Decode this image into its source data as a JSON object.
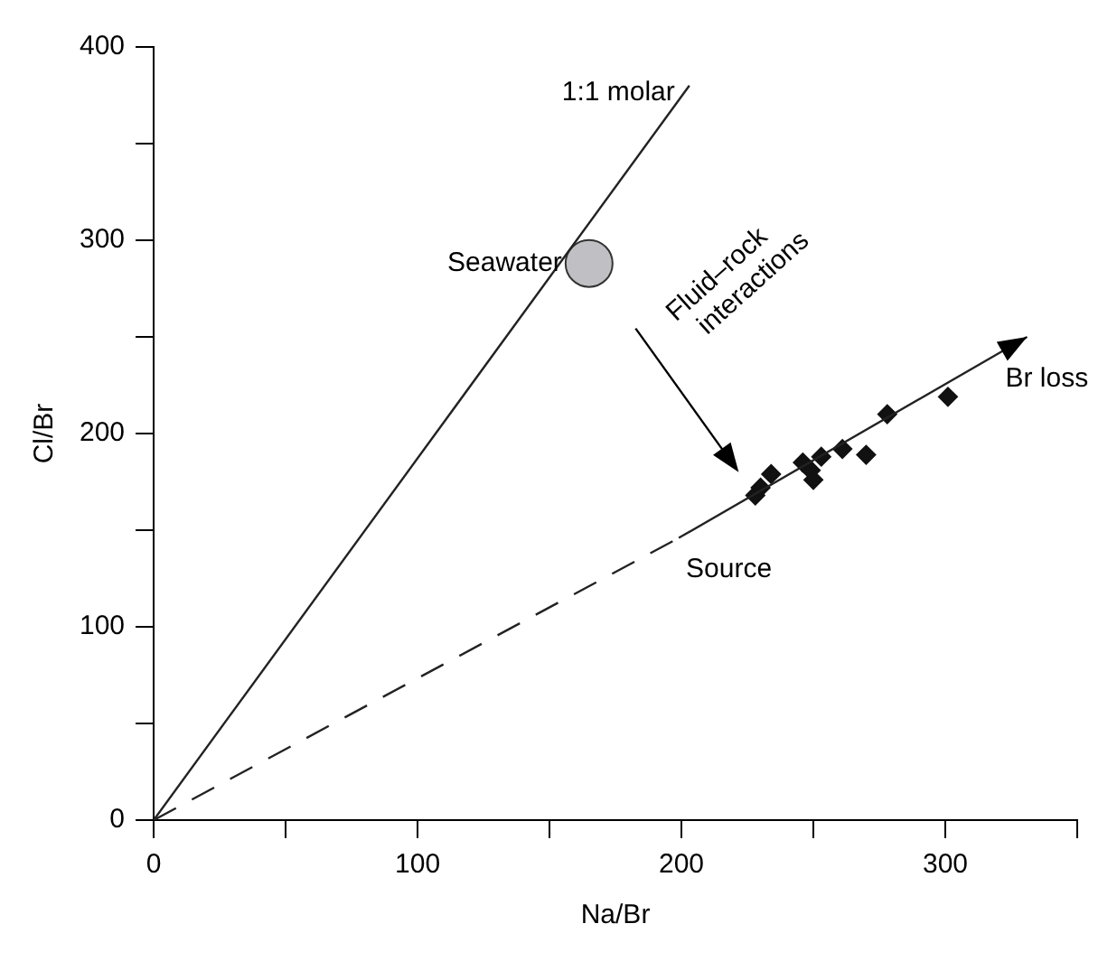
{
  "chart_data": {
    "type": "scatter",
    "xlabel": "Na/Br",
    "ylabel": "Cl/Br",
    "xlim": [
      0,
      350
    ],
    "ylim": [
      0,
      400
    ],
    "xticks": [
      0,
      {
        "value": 50,
        "label": null
      },
      100,
      {
        "value": 150,
        "label": null
      },
      200,
      {
        "value": 250,
        "label": null
      },
      300,
      {
        "value": 350,
        "label": null
      }
    ],
    "yticks": [
      0,
      {
        "value": 50,
        "label": null
      },
      100,
      {
        "value": 150,
        "label": null
      },
      200,
      {
        "value": 250,
        "label": null
      },
      300,
      {
        "value": 350,
        "label": null
      },
      400
    ],
    "series": [
      {
        "type": "line",
        "name": "1:1 molar",
        "color": "#222222",
        "line_style": "solid",
        "marker": "none",
        "x": [
          0,
          203
        ],
        "values": [
          0,
          380
        ]
      },
      {
        "type": "line",
        "color": "#222222",
        "line_style": "dashed",
        "marker": "none",
        "x": [
          0,
          199
        ],
        "values": [
          0,
          146
        ]
      },
      {
        "type": "line",
        "name": "Br loss",
        "color": "#222222",
        "line_style": "solid",
        "marker": "none",
        "x": [
          199,
          331
        ],
        "values": [
          146,
          250
        ]
      },
      {
        "name": "Seawater",
        "color": "#c0c0c4",
        "marker": "circle",
        "x": [
          165
        ],
        "values": [
          288
        ]
      },
      {
        "color": "#111111",
        "marker": "diamond",
        "x": [
          228,
          230,
          234,
          246,
          249,
          250,
          253,
          261,
          270,
          278,
          301
        ],
        "values": [
          168,
          172,
          179,
          185,
          181,
          176,
          188,
          192,
          189,
          210,
          219
        ]
      }
    ],
    "annotations": [
      "Fluid–rock interactions",
      {
        "text": "Source",
        "x": 199,
        "y": 146
      }
    ]
  }
}
